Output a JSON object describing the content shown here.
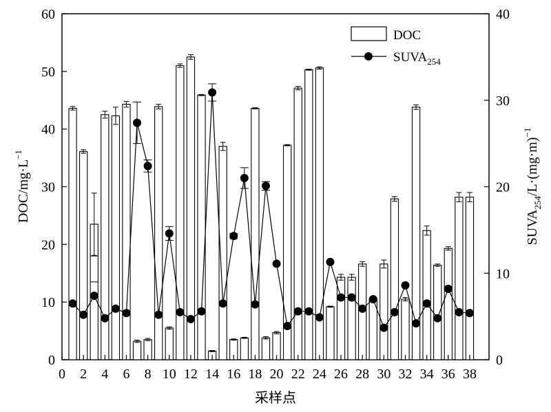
{
  "chart_data": {
    "type": "bar+line",
    "x": [
      1,
      2,
      3,
      4,
      5,
      6,
      7,
      8,
      9,
      10,
      11,
      12,
      13,
      14,
      15,
      16,
      17,
      18,
      19,
      20,
      21,
      22,
      23,
      24,
      25,
      26,
      27,
      28,
      29,
      30,
      31,
      32,
      33,
      34,
      35,
      36,
      37,
      38
    ],
    "x_ticks": [
      0,
      2,
      4,
      6,
      8,
      10,
      12,
      14,
      16,
      18,
      20,
      22,
      24,
      26,
      28,
      30,
      32,
      34,
      36,
      38
    ],
    "xlim": [
      0,
      39.8
    ],
    "xlabel": "采样点",
    "left_axis": {
      "ylabel_main": "DOC/mg·L",
      "ylabel_sup": "−1",
      "ylim": [
        0,
        60
      ],
      "ticks": [
        0,
        10,
        20,
        30,
        40,
        50,
        60
      ]
    },
    "right_axis": {
      "ylabel_main": "SUVA",
      "ylabel_sub": "254",
      "ylabel_rest": "/L·(mg·m)",
      "ylabel_sup": "−1",
      "ylim": [
        0,
        40
      ],
      "ticks": [
        0,
        10,
        20,
        30,
        40
      ]
    },
    "series": [
      {
        "name": "DOC",
        "kind": "bar",
        "axis": "left",
        "values": [
          43.6,
          36.1,
          23.5,
          42.5,
          42.3,
          44.3,
          3.2,
          3.5,
          43.9,
          5.5,
          51.0,
          52.5,
          45.9,
          1.5,
          37.0,
          3.5,
          3.8,
          43.6,
          3.8,
          4.7,
          37.2,
          47.1,
          50.3,
          50.6,
          9.2,
          14.3,
          14.3,
          16.6,
          10.5,
          16.6,
          27.9,
          10.5,
          43.8,
          22.4,
          16.4,
          19.3,
          28.2,
          28.2
        ],
        "errors": [
          0.3,
          0.3,
          5.4,
          0.6,
          1.5,
          0.5,
          0.2,
          0.2,
          0.4,
          0.2,
          0.3,
          0.4,
          0.1,
          0.1,
          0.7,
          0.1,
          0.1,
          0.1,
          0.2,
          0.2,
          0.1,
          0.3,
          0.1,
          0.2,
          0.1,
          0.5,
          0.5,
          0.4,
          0.4,
          0.7,
          0.4,
          0.3,
          0.4,
          0.8,
          0.2,
          0.3,
          0.8,
          0.8
        ],
        "inner_band": [
          1,
          3,
          18.0,
          13.5
        ]
      },
      {
        "name": "SUVA254",
        "name_main": "SUVA",
        "name_sub": "254",
        "kind": "line",
        "axis": "right",
        "values": [
          6.5,
          5.2,
          7.4,
          4.8,
          5.9,
          5.4,
          27.4,
          22.4,
          5.2,
          14.6,
          5.5,
          4.7,
          5.6,
          30.9,
          6.5,
          14.3,
          21.0,
          6.4,
          20.1,
          11.1,
          3.9,
          5.6,
          5.6,
          4.9,
          11.3,
          7.2,
          7.2,
          5.9,
          7.0,
          3.7,
          5.5,
          8.6,
          4.2,
          6.5,
          4.8,
          8.2,
          5.5,
          5.4
        ],
        "errors": [
          0,
          0,
          0,
          0,
          0,
          0,
          2.4,
          0.7,
          0,
          0.8,
          0,
          0,
          0,
          1.0,
          0,
          0.3,
          1.2,
          0,
          0.5,
          0,
          0,
          0,
          0,
          0,
          0,
          0,
          0,
          0,
          0,
          0,
          0,
          0,
          0,
          0,
          0,
          0,
          0,
          0
        ]
      }
    ],
    "legend": {
      "position": "top-right",
      "entries": [
        {
          "series": "DOC",
          "symbol": "open-bar"
        },
        {
          "series": "SUVA254",
          "symbol": "line-dot"
        }
      ]
    }
  }
}
